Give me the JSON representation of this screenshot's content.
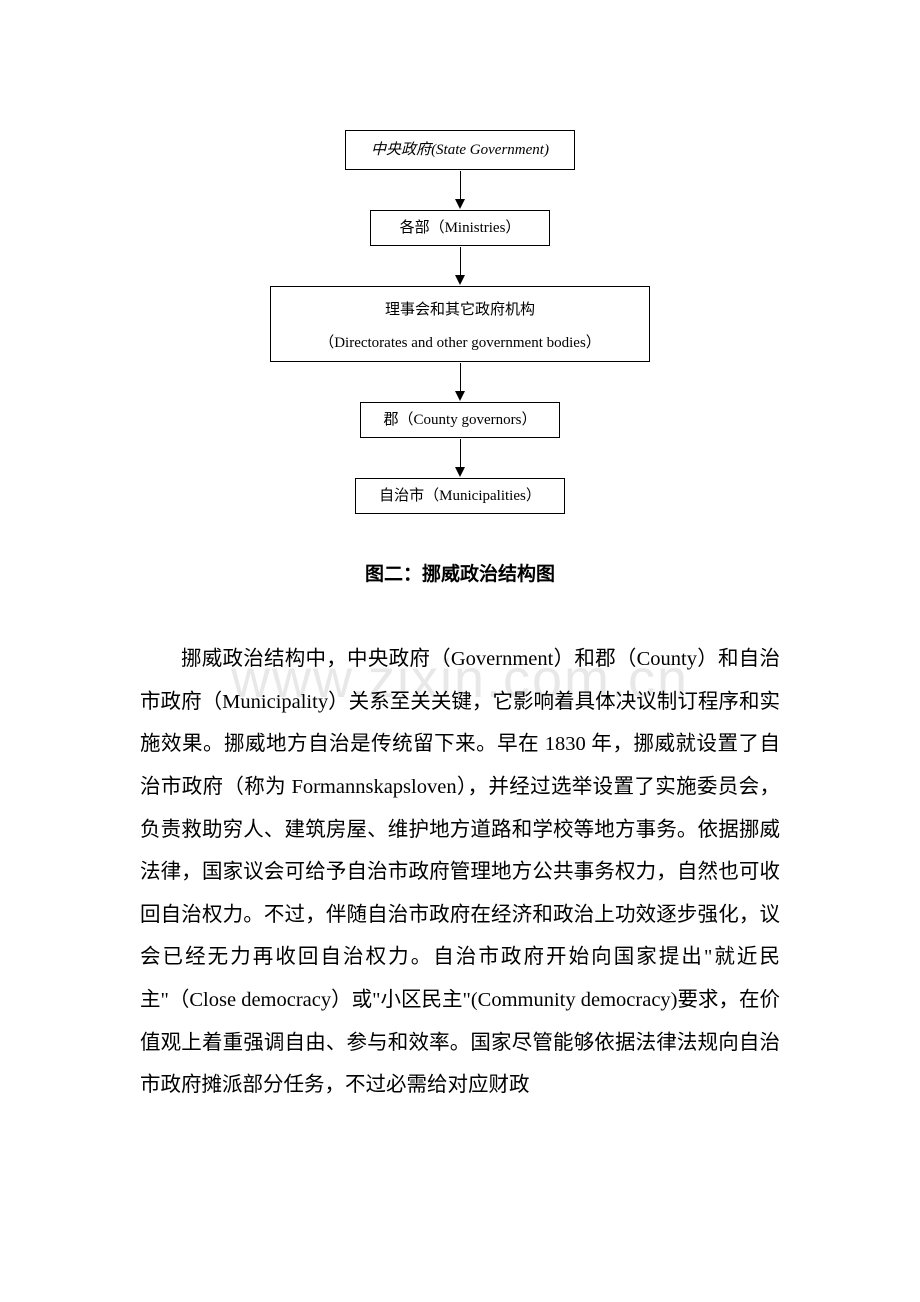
{
  "flowchart": {
    "type": "flowchart",
    "direction": "vertical",
    "nodes": [
      {
        "label_zh": "中央政府",
        "label_en": "(State Government)"
      },
      {
        "label_zh": "各部",
        "label_en": "（Ministries）"
      },
      {
        "label_zh": "理事会和其它政府机构",
        "label_en": "（Directorates and other government bodies）"
      },
      {
        "label_zh": "郡",
        "label_en": "（County governors）"
      },
      {
        "label_zh": "自治市",
        "label_en": "（Municipalities）"
      }
    ],
    "node_border_color": "#000000",
    "node_background": "#ffffff",
    "arrow_color": "#000000",
    "font_size": 15
  },
  "caption": "图二：挪威政治结构图",
  "caption_style": {
    "font_family": "SimHei",
    "font_weight": "bold",
    "font_size": 19,
    "align": "center"
  },
  "watermark": {
    "text": "www.zixin.com.cn",
    "color": "#e8e8e8",
    "font_size": 54
  },
  "paragraph": "挪威政治结构中，中央政府（Government）和郡（County）和自治市政府（Municipality）关系至关关键，它影响着具体决议制订程序和实施效果。挪威地方自治是传统留下来。早在 1830 年，挪威就设置了自治市政府（称为 Formannskapsloven），并经过选举设置了实施委员会，负责救助穷人、建筑房屋、维护地方道路和学校等地方事务。依据挪威法律，国家议会可给予自治市政府管理地方公共事务权力，自然也可收回自治权力。不过，伴随自治市政府在经济和政治上功效逐步强化，议会已经无力再收回自治权力。自治市政府开始向国家提出\"就近民主\"（Close democracy）或\"小区民主\"(Community democracy)要求，在价值观上着重强调自由、参与和效率。国家尽管能够依据法律法规向自治市政府摊派部分任务，不过必需给对应财政",
  "body_style": {
    "font_family": "SimSun",
    "font_size": 20.5,
    "line_height": 2.08,
    "text_indent_em": 2,
    "align": "justify",
    "color": "#000000"
  },
  "page_background": "#ffffff"
}
